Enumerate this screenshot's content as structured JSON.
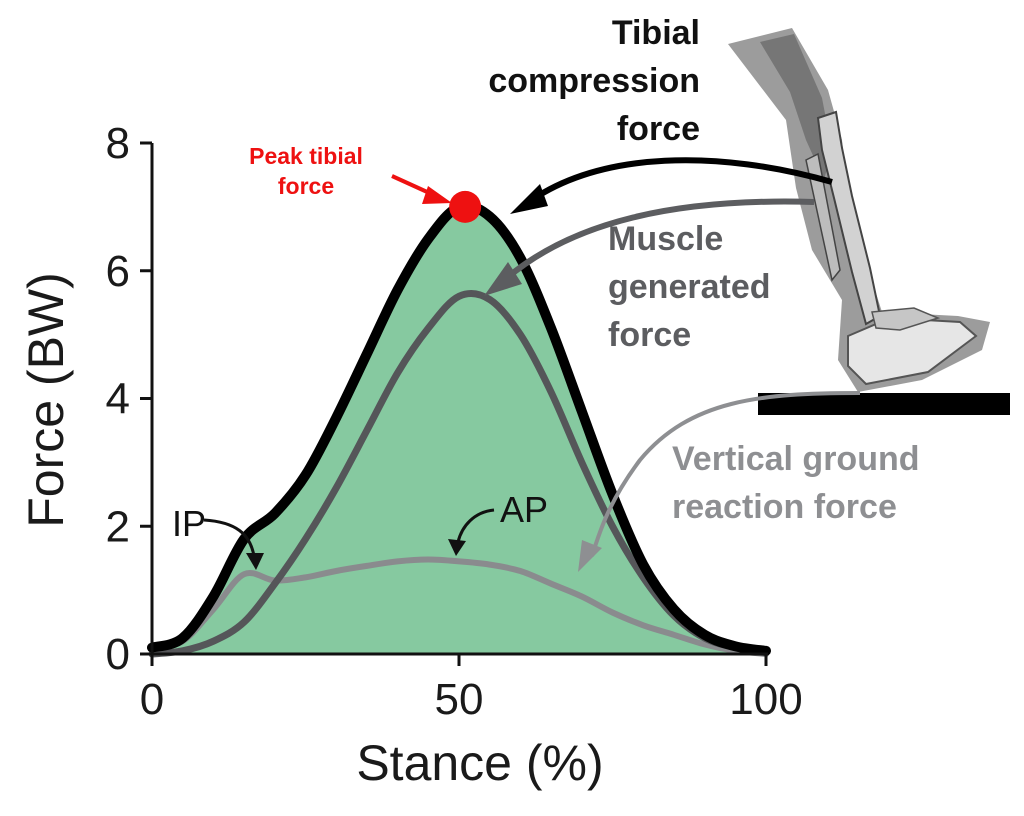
{
  "chart_data": {
    "type": "area",
    "xlabel": "Stance (%)",
    "ylabel": "Force (BW)",
    "xlim": [
      0,
      100
    ],
    "ylim": [
      0,
      8
    ],
    "xticks": [
      0,
      50,
      100
    ],
    "yticks": [
      0,
      2,
      4,
      6,
      8
    ],
    "grid": false,
    "x": [
      0,
      5,
      10,
      15,
      20,
      25,
      30,
      35,
      40,
      45,
      50,
      55,
      60,
      65,
      70,
      75,
      80,
      85,
      90,
      95,
      100
    ],
    "series": [
      {
        "key": "tibial",
        "color": "#000000",
        "fill": "#86c9a0",
        "values": [
          0.1,
          0.25,
          0.9,
          1.8,
          2.2,
          2.8,
          3.7,
          4.7,
          5.7,
          6.5,
          7.0,
          6.85,
          6.2,
          5.1,
          3.8,
          2.5,
          1.4,
          0.7,
          0.3,
          0.12,
          0.05
        ]
      },
      {
        "key": "muscle",
        "color": "#555659",
        "values": [
          0.0,
          0.05,
          0.2,
          0.5,
          1.1,
          1.8,
          2.6,
          3.5,
          4.4,
          5.1,
          5.6,
          5.55,
          5.0,
          4.1,
          3.0,
          2.0,
          1.2,
          0.6,
          0.25,
          0.1,
          0.02
        ]
      },
      {
        "key": "vgrf",
        "color": "#8a8b8e",
        "values": [
          0.1,
          0.2,
          0.7,
          1.25,
          1.15,
          1.2,
          1.3,
          1.38,
          1.45,
          1.48,
          1.45,
          1.4,
          1.3,
          1.1,
          0.9,
          0.65,
          0.45,
          0.3,
          0.15,
          0.05,
          0.0
        ]
      }
    ],
    "peak": {
      "x": 51,
      "y": 7.0,
      "color": "#ee1111"
    }
  },
  "annotations": {
    "tibial_line1": "Tibial",
    "tibial_line2": "compression",
    "tibial_line3": "force",
    "muscle_line1": "Muscle",
    "muscle_line2": "generated",
    "muscle_line3": "force",
    "vgrf_line1": "Vertical ground",
    "vgrf_line2": "reaction force",
    "peak_line1": "Peak tibial",
    "peak_line2": "force",
    "ip": "IP",
    "ap": "AP"
  },
  "colors": {
    "tibial_text": "#111111",
    "muscle_text": "#5c5d60",
    "vgrf_text": "#8e8f92"
  }
}
